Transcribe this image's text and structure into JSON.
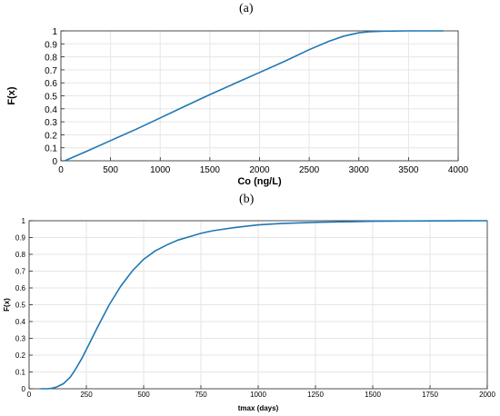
{
  "chart_data": [
    {
      "panel_label": "(a)",
      "type": "line",
      "xlabel": "Co (ng/L)",
      "ylabel": "F(x)",
      "xlim": [
        0,
        4000
      ],
      "ylim": [
        0,
        1
      ],
      "x_ticks": [
        "0",
        "500",
        "1000",
        "1500",
        "2000",
        "2500",
        "3000",
        "3500",
        "4000"
      ],
      "y_ticks": [
        "0",
        "0.1",
        "0.2",
        "0.3",
        "0.4",
        "0.5",
        "0.6",
        "0.7",
        "0.8",
        "0.9",
        "1"
      ],
      "grid": true,
      "color": "#1f77b4",
      "series": [
        {
          "x": [
            40,
            100,
            250,
            500,
            750,
            1000,
            1250,
            1500,
            1750,
            2000,
            2250,
            2500,
            2700,
            2850,
            3000,
            3100,
            3250,
            3500,
            3850
          ],
          "y": [
            0,
            0.02,
            0.07,
            0.155,
            0.24,
            0.33,
            0.42,
            0.51,
            0.595,
            0.68,
            0.765,
            0.855,
            0.92,
            0.96,
            0.985,
            0.993,
            0.998,
            1.0,
            1.0
          ]
        }
      ]
    },
    {
      "panel_label": "(b)",
      "type": "line",
      "xlabel": "tmax (days)",
      "ylabel": "F(x)",
      "xlim": [
        0,
        2000
      ],
      "ylim": [
        0,
        1
      ],
      "x_ticks": [
        "0",
        "250",
        "500",
        "750",
        "1000",
        "1250",
        "1500",
        "1750",
        "2000"
      ],
      "y_ticks": [
        "0",
        "0.1",
        "0.2",
        "0.3",
        "0.4",
        "0.5",
        "0.6",
        "0.7",
        "0.8",
        "0.9",
        "1"
      ],
      "grid": true,
      "color": "#1f77b4",
      "series": [
        {
          "x": [
            50,
            80,
            100,
            120,
            150,
            180,
            200,
            230,
            260,
            300,
            350,
            400,
            450,
            500,
            550,
            600,
            650,
            700,
            750,
            800,
            900,
            1000,
            1100,
            1250,
            1500,
            1750,
            2000
          ],
          "y": [
            0,
            0,
            0.003,
            0.01,
            0.03,
            0.07,
            0.11,
            0.18,
            0.26,
            0.37,
            0.5,
            0.61,
            0.7,
            0.77,
            0.82,
            0.855,
            0.885,
            0.905,
            0.925,
            0.94,
            0.96,
            0.975,
            0.983,
            0.99,
            0.997,
            0.999,
            1.0
          ]
        }
      ]
    }
  ]
}
